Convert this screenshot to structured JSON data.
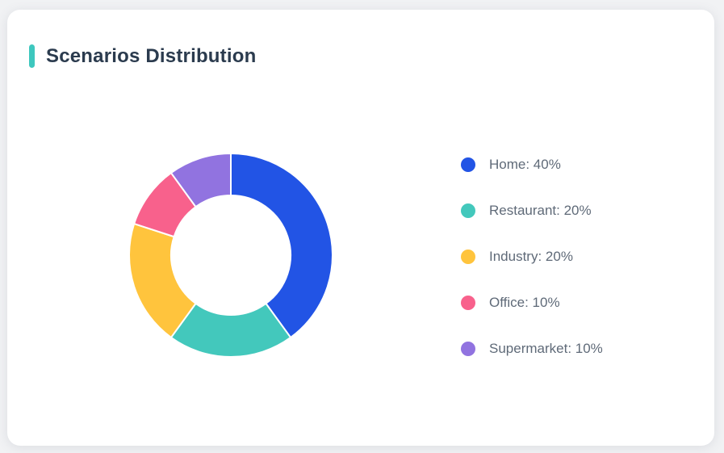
{
  "window": {
    "background_color": "#f1f2f4"
  },
  "card": {
    "background_color": "#ffffff",
    "header": {
      "title": "Scenarios Distribution",
      "accent_color": "#3ec7be",
      "title_color": "#2b3b4e"
    }
  },
  "chart_data": {
    "type": "pie",
    "variant": "donut",
    "title": "Scenarios Distribution",
    "start_angle_deg": 0,
    "direction": "clockwise",
    "outer_radius_px": 126,
    "inner_radius_px": 74,
    "slice_border_color": "#ffffff",
    "slice_border_width_px": 2,
    "legend_position": "right",
    "unit": "%",
    "categories": [
      "Home",
      "Restaurant",
      "Industry",
      "Office",
      "Supermarket"
    ],
    "values": [
      40,
      20,
      20,
      10,
      10
    ],
    "slices": [
      {
        "name": "Home",
        "value": 40,
        "color": "#2254e5",
        "legend_label": "Home: 40%"
      },
      {
        "name": "Restaurant",
        "value": 20,
        "color": "#43c8bc",
        "legend_label": "Restaurant: 20%"
      },
      {
        "name": "Industry",
        "value": 20,
        "color": "#ffc43d",
        "legend_label": "Industry: 20%"
      },
      {
        "name": "Office",
        "value": 10,
        "color": "#f8618c",
        "legend_label": "Office: 10%"
      },
      {
        "name": "Supermarket",
        "value": 10,
        "color": "#9173e0",
        "legend_label": "Supermarket: 10%"
      }
    ]
  }
}
